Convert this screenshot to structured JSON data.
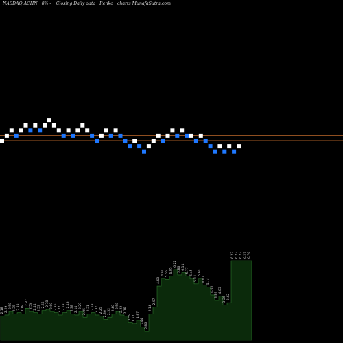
{
  "header": {
    "ticker": "NASDAQ:ACHN",
    "change": "8%~",
    "description": "Closing Daily data",
    "chart_kind": "Renko",
    "source": "charts MunafaSutra.com"
  },
  "colors": {
    "background": "#000000",
    "up_brick": "#ffffff",
    "down_brick": "#1f78ff",
    "level_line": "#a35a24",
    "volume_fill": "#0b2a0b",
    "volume_line": "#2d7a2d",
    "volume_label": "#cfcfcf"
  },
  "chart_data": [
    {
      "type": "renko",
      "title": "",
      "reference_levels": [
        1.0,
        0.0
      ],
      "bricks": [
        {
          "level": 0,
          "dir": "up"
        },
        {
          "level": 1,
          "dir": "up"
        },
        {
          "level": 2,
          "dir": "up"
        },
        {
          "level": 1,
          "dir": "down"
        },
        {
          "level": 2,
          "dir": "up"
        },
        {
          "level": 3,
          "dir": "up"
        },
        {
          "level": 2,
          "dir": "down"
        },
        {
          "level": 3,
          "dir": "up"
        },
        {
          "level": 2,
          "dir": "down"
        },
        {
          "level": 3,
          "dir": "up"
        },
        {
          "level": 4,
          "dir": "up"
        },
        {
          "level": 3,
          "dir": "up"
        },
        {
          "level": 2,
          "dir": "up"
        },
        {
          "level": 1,
          "dir": "down"
        },
        {
          "level": 2,
          "dir": "up"
        },
        {
          "level": 1,
          "dir": "down"
        },
        {
          "level": 2,
          "dir": "up"
        },
        {
          "level": 3,
          "dir": "up"
        },
        {
          "level": 2,
          "dir": "up"
        },
        {
          "level": 1,
          "dir": "down"
        },
        {
          "level": 0,
          "dir": "down"
        },
        {
          "level": 1,
          "dir": "up"
        },
        {
          "level": 2,
          "dir": "up"
        },
        {
          "level": 1,
          "dir": "down"
        },
        {
          "level": 2,
          "dir": "up"
        },
        {
          "level": 1,
          "dir": "down"
        },
        {
          "level": 0,
          "dir": "down"
        },
        {
          "level": -1,
          "dir": "down"
        },
        {
          "level": 0,
          "dir": "up"
        },
        {
          "level": -1,
          "dir": "down"
        },
        {
          "level": -2,
          "dir": "down"
        },
        {
          "level": -1,
          "dir": "up"
        },
        {
          "level": 0,
          "dir": "up"
        },
        {
          "level": 1,
          "dir": "up"
        },
        {
          "level": 0,
          "dir": "down"
        },
        {
          "level": 1,
          "dir": "up"
        },
        {
          "level": 2,
          "dir": "up"
        },
        {
          "level": 1,
          "dir": "down"
        },
        {
          "level": 2,
          "dir": "up"
        },
        {
          "level": 1,
          "dir": "down"
        },
        {
          "level": 1,
          "dir": "up"
        },
        {
          "level": 0,
          "dir": "down"
        },
        {
          "level": 1,
          "dir": "up"
        },
        {
          "level": 0,
          "dir": "down"
        },
        {
          "level": -1,
          "dir": "down"
        },
        {
          "level": -2,
          "dir": "down"
        },
        {
          "level": -1,
          "dir": "up"
        },
        {
          "level": -2,
          "dir": "down"
        },
        {
          "level": -1,
          "dir": "up"
        },
        {
          "level": -2,
          "dir": "down"
        },
        {
          "level": -1,
          "dir": "up"
        }
      ]
    },
    {
      "type": "area",
      "title": "",
      "ylim": [
        0,
        9
      ],
      "values": [
        2.2,
        2.3,
        2.6,
        2.4,
        2.5,
        2.4,
        2.9,
        2.6,
        2.5,
        2.4,
        2.7,
        2.8,
        2.6,
        2.5,
        2.3,
        2.5,
        2.7,
        2.4,
        2.3,
        2.6,
        2.1,
        2.4,
        2.5,
        2.3,
        2.2,
        1.9,
        2.1,
        2.4,
        2.6,
        2.3,
        2.2,
        1.6,
        1.5,
        1.8,
        1.2,
        0.8,
        2.4,
        3.0,
        4.9,
        5.6,
        5.5,
        5.8,
        6.4,
        5.9,
        6.1,
        5.8,
        5.6,
        5.1,
        5.6,
        5.0,
        4.8,
        4.1,
        3.6,
        4.0,
        3.2,
        3.4,
        7.2,
        7.2,
        7.2,
        7.2,
        7.2
      ],
      "labels": [
        "2.18",
        "2.29",
        "2.58",
        "2.35",
        "2.33",
        "2.18",
        "2.87",
        "2.58",
        "2.44",
        "2.53",
        "2.65",
        "2.78",
        "2.60",
        "2.35",
        "2.22",
        "2.53",
        "2.43",
        "2.38",
        "2.14",
        "2.29",
        "2.05",
        "2.31",
        "2.53",
        "2.37",
        "2.25",
        "2.36",
        "2.32",
        "2.40",
        "2.58",
        "2.22",
        "2.18",
        "1.59",
        "1.52",
        "1.87",
        "1.44",
        "0.86",
        "2.14",
        "2.97",
        "4.68",
        "4.94",
        "5.56",
        "6.05",
        "6.22",
        "5.86",
        "6.11",
        "5.77",
        "5.45",
        "5.11",
        "5.60",
        "4.87",
        "4.73",
        "4.05",
        "3.89",
        "4.03",
        "3.26",
        "3.42",
        "6.27",
        "6.27",
        "6.27",
        "6.27",
        "6.76"
      ]
    }
  ]
}
